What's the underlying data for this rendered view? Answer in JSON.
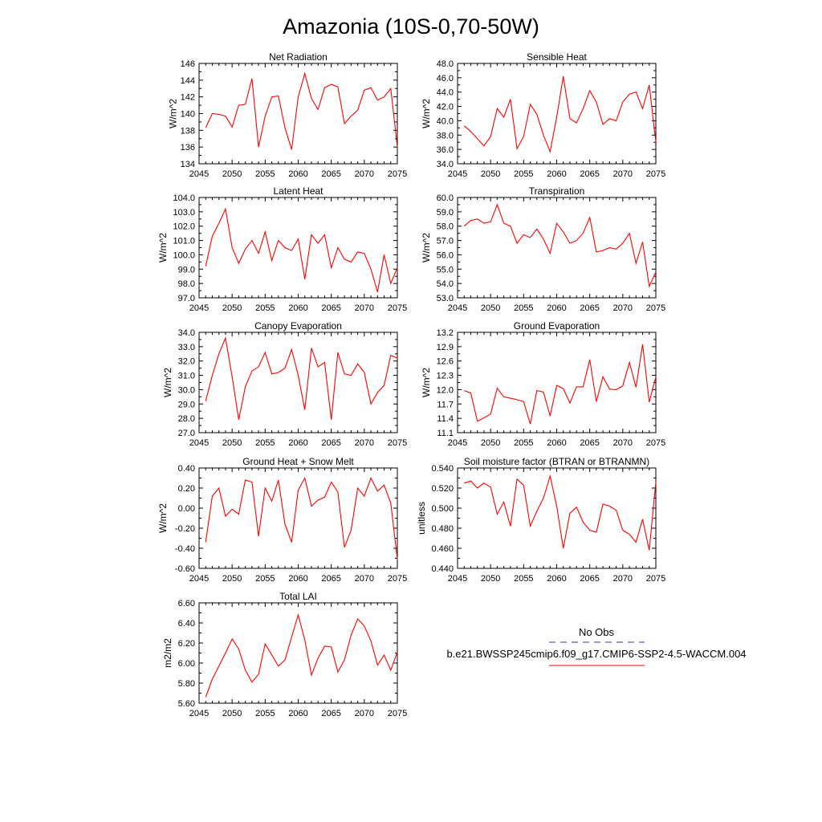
{
  "figure": {
    "title": "Amazonia (10S-0,70-50W)",
    "series_color": "#ff0000",
    "obs_color": "#3333aa"
  },
  "legend": {
    "obs_label": "No Obs",
    "model_label": "b.e21.BWSSP245cmip6.f09_g17.CMIP6-SSP2-4.5-WACCM.004"
  },
  "chart_data": [
    {
      "type": "line",
      "title": "Net Radiation",
      "ylabel": "W/m^2",
      "xlim": [
        2045,
        2075
      ],
      "ylim": [
        134,
        146
      ],
      "xticks": [
        2045,
        2050,
        2055,
        2060,
        2065,
        2070,
        2075
      ],
      "yticks": [
        "134",
        "136",
        "138",
        "140",
        "142",
        "144",
        "146"
      ],
      "x": [
        2046,
        2047,
        2048,
        2049,
        2050,
        2051,
        2052,
        2053,
        2054,
        2055,
        2056,
        2057,
        2058,
        2059,
        2060,
        2061,
        2062,
        2063,
        2064,
        2065,
        2066,
        2067,
        2068,
        2069,
        2070,
        2071,
        2072,
        2073,
        2074,
        2075
      ],
      "values": [
        138.3,
        140.0,
        139.9,
        139.7,
        138.4,
        141.0,
        141.1,
        144.2,
        136.0,
        139.7,
        142.0,
        142.1,
        138.3,
        135.7,
        142.0,
        144.8,
        141.8,
        140.5,
        143.1,
        143.5,
        143.2,
        138.8,
        139.7,
        140.4,
        142.8,
        143.1,
        141.6,
        142.0,
        143.0,
        136.0
      ]
    },
    {
      "type": "line",
      "title": "Sensible Heat",
      "ylabel": "W/m^2",
      "xlim": [
        2045,
        2075
      ],
      "ylim": [
        34,
        48
      ],
      "xticks": [
        2045,
        2050,
        2055,
        2060,
        2065,
        2070,
        2075
      ],
      "yticks": [
        "34.0",
        "36.0",
        "38.0",
        "40.0",
        "42.0",
        "44.0",
        "46.0",
        "48.0"
      ],
      "x": [
        2046,
        2047,
        2048,
        2049,
        2050,
        2051,
        2052,
        2053,
        2054,
        2055,
        2056,
        2057,
        2058,
        2059,
        2060,
        2061,
        2062,
        2063,
        2064,
        2065,
        2066,
        2067,
        2068,
        2069,
        2070,
        2071,
        2072,
        2073,
        2074,
        2075
      ],
      "values": [
        39.3,
        38.5,
        37.5,
        36.5,
        37.8,
        41.7,
        40.5,
        43.0,
        36.1,
        37.8,
        42.3,
        40.9,
        38.0,
        35.7,
        40.5,
        46.2,
        40.3,
        39.7,
        41.7,
        44.2,
        42.6,
        39.5,
        40.3,
        40.0,
        42.6,
        43.7,
        44.0,
        41.7,
        45.0,
        37.0
      ]
    },
    {
      "type": "line",
      "title": "Latent Heat",
      "ylabel": "W/m^2",
      "xlim": [
        2045,
        2075
      ],
      "ylim": [
        97,
        104
      ],
      "xticks": [
        2045,
        2050,
        2055,
        2060,
        2065,
        2070,
        2075
      ],
      "yticks": [
        "97.0",
        "98.0",
        "99.0",
        "100.0",
        "101.0",
        "102.0",
        "103.0",
        "104.0"
      ],
      "x": [
        2046,
        2047,
        2048,
        2049,
        2050,
        2051,
        2052,
        2053,
        2054,
        2055,
        2056,
        2057,
        2058,
        2059,
        2060,
        2061,
        2062,
        2063,
        2064,
        2065,
        2066,
        2067,
        2068,
        2069,
        2070,
        2071,
        2072,
        2073,
        2074,
        2075
      ],
      "values": [
        99.2,
        101.3,
        102.2,
        103.2,
        100.5,
        99.4,
        100.4,
        101.0,
        100.1,
        101.6,
        99.6,
        101.0,
        100.5,
        100.3,
        101.1,
        98.3,
        101.4,
        100.8,
        101.4,
        99.1,
        100.5,
        99.7,
        99.5,
        100.2,
        100.1,
        99.0,
        97.4,
        100.0,
        98.0,
        99.1
      ]
    },
    {
      "type": "line",
      "title": "Transpiration",
      "ylabel": "W/m^2",
      "xlim": [
        2045,
        2075
      ],
      "ylim": [
        53,
        60
      ],
      "xticks": [
        2045,
        2050,
        2055,
        2060,
        2065,
        2070,
        2075
      ],
      "yticks": [
        "53.0",
        "54.0",
        "55.0",
        "56.0",
        "57.0",
        "58.0",
        "59.0",
        "60.0"
      ],
      "x": [
        2046,
        2047,
        2048,
        2049,
        2050,
        2051,
        2052,
        2053,
        2054,
        2055,
        2056,
        2057,
        2058,
        2059,
        2060,
        2061,
        2062,
        2063,
        2064,
        2065,
        2066,
        2067,
        2068,
        2069,
        2070,
        2071,
        2072,
        2073,
        2074,
        2075
      ],
      "values": [
        58.0,
        58.4,
        58.5,
        58.2,
        58.3,
        59.5,
        58.2,
        58.0,
        56.8,
        57.4,
        57.2,
        57.8,
        57.1,
        56.1,
        58.2,
        57.6,
        56.8,
        57.0,
        57.5,
        58.6,
        56.2,
        56.3,
        56.5,
        56.4,
        56.8,
        57.5,
        55.4,
        56.9,
        53.8,
        54.8
      ]
    },
    {
      "type": "line",
      "title": "Canopy Evaporation",
      "ylabel": "W/m^2",
      "xlim": [
        2045,
        2075
      ],
      "ylim": [
        27,
        34
      ],
      "xticks": [
        2045,
        2050,
        2055,
        2060,
        2065,
        2070,
        2075
      ],
      "yticks": [
        "27.0",
        "28.0",
        "29.0",
        "30.0",
        "31.0",
        "32.0",
        "33.0",
        "34.0"
      ],
      "x": [
        2046,
        2047,
        2048,
        2049,
        2050,
        2051,
        2052,
        2053,
        2054,
        2055,
        2056,
        2057,
        2058,
        2059,
        2060,
        2061,
        2062,
        2063,
        2064,
        2065,
        2066,
        2067,
        2068,
        2069,
        2070,
        2071,
        2072,
        2073,
        2074,
        2075
      ],
      "values": [
        29.2,
        31.0,
        32.5,
        33.6,
        30.9,
        27.9,
        30.2,
        31.3,
        31.6,
        32.6,
        31.1,
        31.2,
        31.5,
        32.8,
        31.0,
        28.6,
        32.9,
        31.6,
        31.9,
        27.9,
        32.6,
        31.1,
        31.0,
        31.8,
        31.2,
        29.0,
        29.8,
        30.3,
        32.4,
        32.2
      ]
    },
    {
      "type": "line",
      "title": "Ground Evaporation",
      "ylabel": "W/m^2",
      "xlim": [
        2045,
        2075
      ],
      "ylim": [
        11.1,
        13.2
      ],
      "xticks": [
        2045,
        2050,
        2055,
        2060,
        2065,
        2070,
        2075
      ],
      "yticks": [
        "11.1",
        "11.4",
        "11.7",
        "12.0",
        "12.3",
        "12.6",
        "12.9",
        "13.2"
      ],
      "x": [
        2046,
        2047,
        2048,
        2049,
        2050,
        2051,
        2052,
        2053,
        2054,
        2055,
        2056,
        2057,
        2058,
        2059,
        2060,
        2061,
        2062,
        2063,
        2064,
        2065,
        2066,
        2067,
        2068,
        2069,
        2070,
        2071,
        2072,
        2073,
        2074,
        2075
      ],
      "values": [
        11.98,
        11.93,
        11.34,
        11.41,
        11.49,
        12.03,
        11.85,
        11.82,
        11.79,
        11.75,
        11.28,
        11.98,
        11.95,
        11.45,
        12.09,
        12.02,
        11.72,
        12.06,
        12.06,
        12.63,
        11.75,
        12.27,
        12.01,
        12.0,
        12.08,
        12.57,
        12.05,
        12.95,
        11.74,
        12.27
      ]
    },
    {
      "type": "line",
      "title": "Ground Heat + Snow Melt",
      "ylabel": "W/m^2",
      "xlim": [
        2045,
        2075
      ],
      "ylim": [
        -0.6,
        0.4
      ],
      "xticks": [
        2045,
        2050,
        2055,
        2060,
        2065,
        2070,
        2075
      ],
      "yticks": [
        "-0.60",
        "-0.40",
        "-0.20",
        "0.00",
        "0.20",
        "0.40"
      ],
      "x": [
        2046,
        2047,
        2048,
        2049,
        2050,
        2051,
        2052,
        2053,
        2054,
        2055,
        2056,
        2057,
        2058,
        2059,
        2060,
        2061,
        2062,
        2063,
        2064,
        2065,
        2066,
        2067,
        2068,
        2069,
        2070,
        2071,
        2072,
        2073,
        2074,
        2075
      ],
      "values": [
        -0.34,
        0.12,
        0.2,
        -0.08,
        -0.01,
        -0.06,
        0.28,
        0.26,
        -0.28,
        0.2,
        0.07,
        0.28,
        -0.16,
        -0.34,
        0.18,
        0.3,
        0.02,
        0.08,
        0.11,
        0.26,
        0.16,
        -0.39,
        -0.22,
        0.2,
        0.12,
        0.3,
        0.17,
        0.23,
        0.05,
        -0.51
      ]
    },
    {
      "type": "line",
      "title": "Soil moisture factor (BTRAN or BTRANMN)",
      "ylabel": "unitless",
      "xlim": [
        2045,
        2075
      ],
      "ylim": [
        0.44,
        0.54
      ],
      "xticks": [
        2045,
        2050,
        2055,
        2060,
        2065,
        2070,
        2075
      ],
      "yticks": [
        "0.440",
        "0.460",
        "0.480",
        "0.500",
        "0.520",
        "0.540"
      ],
      "x": [
        2046,
        2047,
        2048,
        2049,
        2050,
        2051,
        2052,
        2053,
        2054,
        2055,
        2056,
        2057,
        2058,
        2059,
        2060,
        2061,
        2062,
        2063,
        2064,
        2065,
        2066,
        2067,
        2068,
        2069,
        2070,
        2071,
        2072,
        2073,
        2074,
        2075
      ],
      "values": [
        0.525,
        0.527,
        0.52,
        0.525,
        0.521,
        0.494,
        0.506,
        0.482,
        0.529,
        0.523,
        0.482,
        0.497,
        0.51,
        0.532,
        0.502,
        0.46,
        0.495,
        0.501,
        0.486,
        0.478,
        0.476,
        0.504,
        0.502,
        0.498,
        0.478,
        0.474,
        0.466,
        0.489,
        0.458,
        0.526
      ]
    },
    {
      "type": "line",
      "title": "Total LAI",
      "ylabel": "m2/m2",
      "xlim": [
        2045,
        2075
      ],
      "ylim": [
        5.6,
        6.6
      ],
      "xticks": [
        2045,
        2050,
        2055,
        2060,
        2065,
        2070,
        2075
      ],
      "yticks": [
        "5.60",
        "5.80",
        "6.00",
        "6.20",
        "6.40",
        "6.60"
      ],
      "x": [
        2046,
        2047,
        2048,
        2049,
        2050,
        2051,
        2052,
        2053,
        2054,
        2055,
        2056,
        2057,
        2058,
        2059,
        2060,
        2061,
        2062,
        2063,
        2064,
        2065,
        2066,
        2067,
        2068,
        2069,
        2070,
        2071,
        2072,
        2073,
        2074,
        2075
      ],
      "values": [
        5.66,
        5.84,
        5.97,
        6.1,
        6.24,
        6.14,
        5.93,
        5.81,
        5.89,
        6.19,
        6.08,
        5.97,
        6.03,
        6.26,
        6.48,
        6.23,
        5.88,
        6.05,
        6.17,
        6.16,
        5.91,
        6.03,
        6.28,
        6.44,
        6.37,
        6.22,
        5.98,
        6.08,
        5.93,
        6.11
      ]
    }
  ]
}
